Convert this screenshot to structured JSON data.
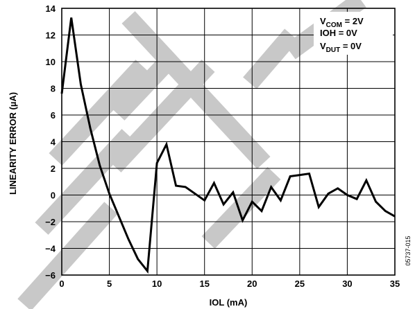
{
  "chart_data": {
    "type": "line",
    "xlabel": "IOL (mA)",
    "ylabel": "LINEARITY ERROR (µA)",
    "xlim": [
      0,
      35
    ],
    "ylim": [
      -6,
      14
    ],
    "xticks": [
      0,
      5,
      10,
      15,
      20,
      25,
      30,
      35
    ],
    "yticks": [
      -6,
      -4,
      -2,
      0,
      2,
      4,
      6,
      8,
      10,
      12,
      14
    ],
    "grid": true,
    "series": [
      {
        "color": "#000000",
        "x": [
          0,
          1,
          2,
          3,
          4,
          5,
          6,
          7,
          8,
          9,
          10,
          11,
          12,
          13,
          14,
          15,
          16,
          17,
          18,
          19,
          20,
          21,
          22,
          23,
          24,
          25,
          26,
          27,
          28,
          29,
          30,
          31,
          32,
          33,
          34,
          35
        ],
        "y": [
          7.6,
          13.3,
          8.3,
          5.0,
          2.2,
          0.1,
          -1.6,
          -3.3,
          -4.8,
          -5.7,
          2.4,
          3.8,
          0.7,
          0.6,
          0.1,
          -0.4,
          0.9,
          -0.7,
          0.2,
          -1.9,
          -0.5,
          -1.2,
          0.6,
          -0.4,
          1.4,
          1.5,
          1.6,
          -0.9,
          0.1,
          0.5,
          0.0,
          -0.3,
          1.1,
          -0.5,
          -1.2,
          -1.6
        ]
      }
    ],
    "legend": {
      "placement": "top-right",
      "lines": [
        {
          "main": "V",
          "sub": "COM",
          "rest": " = 2V"
        },
        {
          "main": "IOH = 0V",
          "sub": "",
          "rest": ""
        },
        {
          "main": "V",
          "sub": "DUT",
          "rest": " = 0V"
        }
      ]
    },
    "figure_id": "05737-015"
  },
  "watermark": {
    "color": "#c8c8c8"
  }
}
